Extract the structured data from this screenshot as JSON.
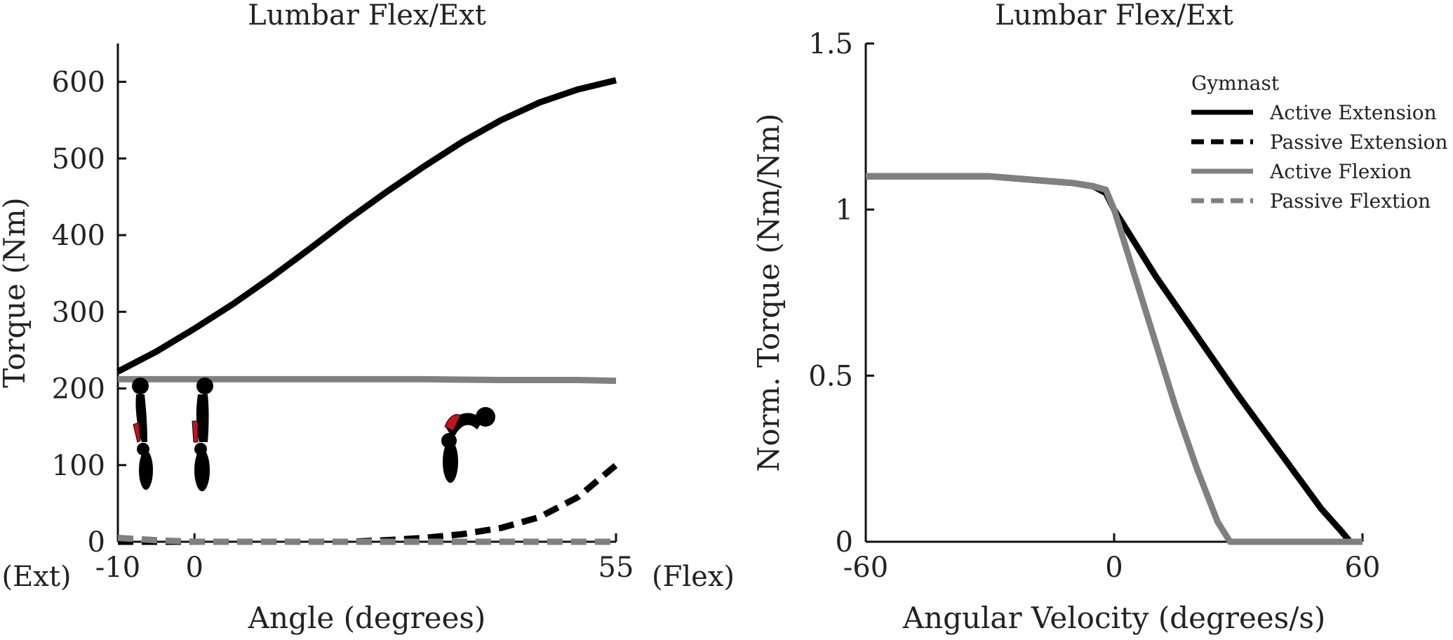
{
  "chart_data": [
    {
      "type": "line",
      "title": "Lumbar Flex/Ext",
      "xlabel": "Angle (degrees)",
      "ylabel": "Torque (Nm)",
      "xlim": [
        -10,
        55
      ],
      "ylim": [
        0,
        650
      ],
      "x_ticks": [
        -10,
        0,
        55
      ],
      "x_tick_labels": [
        "-10",
        "0",
        "55"
      ],
      "x_end_labels": {
        "left": "(Ext)",
        "right": "(Flex)"
      },
      "y_ticks": [
        0,
        100,
        200,
        300,
        400,
        500,
        600
      ],
      "y_tick_labels": [
        "0",
        "100",
        "200",
        "300",
        "400",
        "500",
        "600"
      ],
      "series": [
        {
          "name": "Active Extension",
          "color": "#000000",
          "style": "solid",
          "x": [
            -10,
            -5,
            0,
            5,
            10,
            15,
            20,
            25,
            30,
            35,
            40,
            45,
            50,
            55
          ],
          "y": [
            222,
            248,
            278,
            310,
            345,
            382,
            420,
            456,
            490,
            522,
            550,
            573,
            590,
            602
          ]
        },
        {
          "name": "Passive Extension",
          "color": "#000000",
          "style": "dashed",
          "x": [
            -10,
            0,
            10,
            20,
            25,
            30,
            35,
            40,
            45,
            50,
            55
          ],
          "y": [
            0,
            0,
            0,
            0,
            2,
            5,
            10,
            18,
            32,
            58,
            100
          ]
        },
        {
          "name": "Active Flexion",
          "color": "#808080",
          "style": "solid",
          "x": [
            -10,
            0,
            10,
            20,
            30,
            40,
            50,
            55
          ],
          "y": [
            212,
            212,
            212,
            212,
            212,
            211,
            211,
            210
          ]
        },
        {
          "name": "Passive Flextion",
          "color": "#808080",
          "style": "dashed",
          "x": [
            -10,
            -5,
            0,
            10,
            20,
            30,
            40,
            50,
            55
          ],
          "y": [
            5,
            2,
            0,
            0,
            0,
            0,
            0,
            0,
            0
          ]
        }
      ],
      "illustrations": [
        "gymnast-extended-icon",
        "gymnast-neutral-icon",
        "gymnast-flexed-icon"
      ],
      "highlight_color": "#c0141c"
    },
    {
      "type": "line",
      "title": "Lumbar Flex/Ext",
      "xlabel": "Angular Velocity (degrees/s)",
      "ylabel": "Norm. Torque (Nm/Nm)",
      "xlim": [
        -60,
        60
      ],
      "ylim": [
        0,
        1.5
      ],
      "x_ticks": [
        -60,
        0,
        60
      ],
      "x_tick_labels": [
        "-60",
        "0",
        "60"
      ],
      "y_ticks": [
        0,
        0.5,
        1,
        1.5
      ],
      "y_tick_labels": [
        "0",
        "0.5",
        "1",
        "1.5"
      ],
      "legend": {
        "title": "Gymnast",
        "position": "top-right",
        "entries": [
          {
            "label": "Active Extension",
            "color": "#000000",
            "style": "solid"
          },
          {
            "label": "Passive Extension",
            "color": "#000000",
            "style": "dashed"
          },
          {
            "label": "Active Flexion",
            "color": "#808080",
            "style": "solid"
          },
          {
            "label": "Passive Flextion",
            "color": "#808080",
            "style": "dashed"
          }
        ]
      },
      "series": [
        {
          "name": "Active Extension",
          "color": "#000000",
          "style": "solid",
          "x": [
            -60,
            -40,
            -30,
            -20,
            -10,
            -5,
            -2,
            0,
            5,
            10,
            20,
            30,
            40,
            50,
            55,
            57,
            60
          ],
          "y": [
            1.1,
            1.1,
            1.1,
            1.09,
            1.08,
            1.07,
            1.05,
            1.0,
            0.9,
            0.8,
            0.62,
            0.44,
            0.27,
            0.1,
            0.03,
            0.0,
            0.0
          ]
        },
        {
          "name": "Active Flexion",
          "color": "#808080",
          "style": "solid",
          "x": [
            -60,
            -30,
            -20,
            -10,
            -5,
            -2,
            0,
            5,
            10,
            15,
            20,
            25,
            28,
            30,
            40,
            50,
            60
          ],
          "y": [
            1.1,
            1.1,
            1.09,
            1.08,
            1.07,
            1.06,
            1.0,
            0.8,
            0.6,
            0.4,
            0.22,
            0.06,
            0.0,
            0.0,
            0.0,
            0.0,
            0.0
          ]
        }
      ]
    }
  ]
}
